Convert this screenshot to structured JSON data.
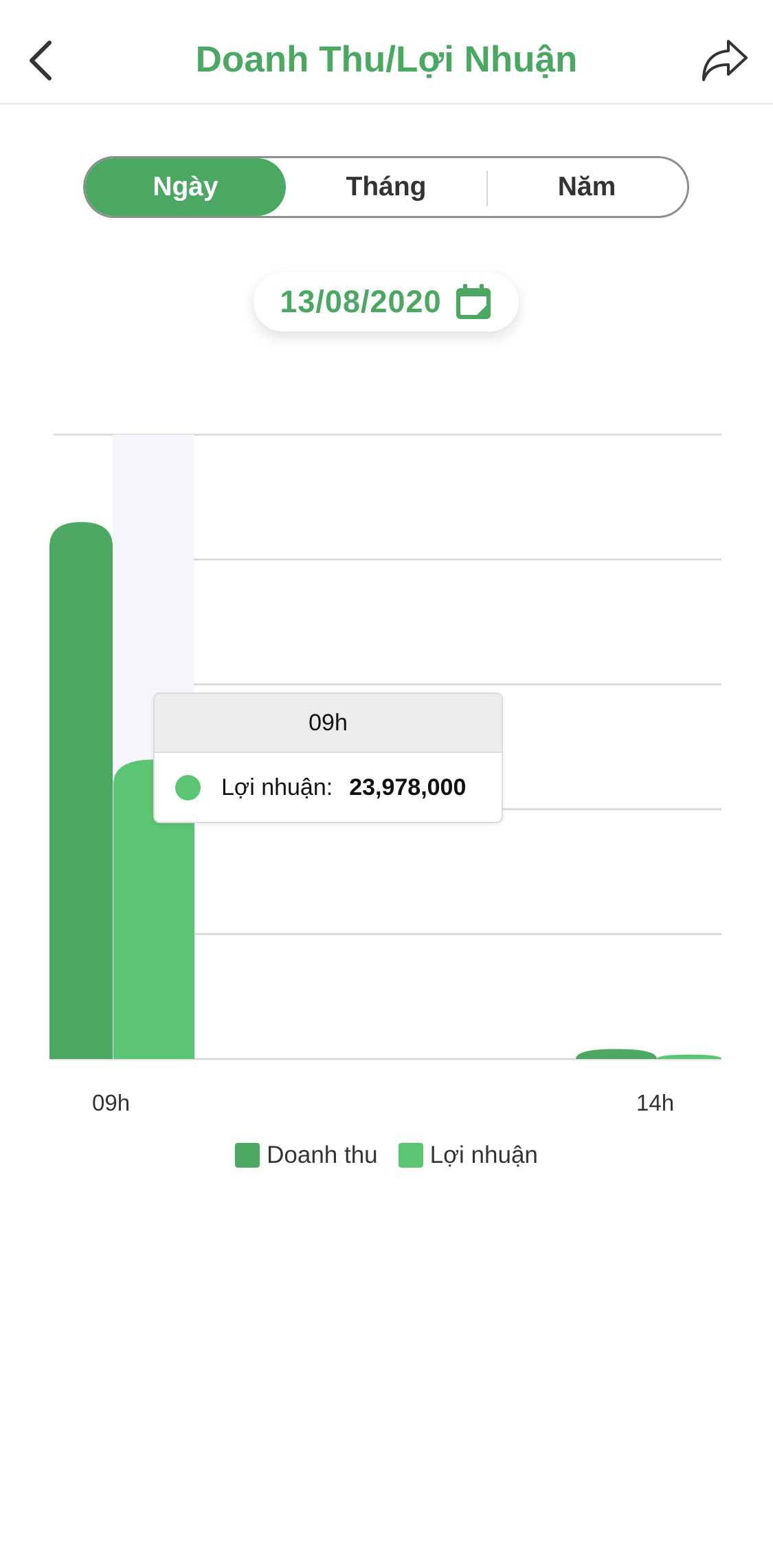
{
  "header": {
    "title": "Doanh Thu/Lợi Nhuận"
  },
  "tabs": [
    {
      "label": "Ngày",
      "active": true
    },
    {
      "label": "Tháng",
      "active": false
    },
    {
      "label": "Năm",
      "active": false
    }
  ],
  "date_picker": {
    "value": "13/08/2020"
  },
  "tooltip": {
    "title": "09h",
    "series_label": "Lợi nhuận:",
    "value": "23,978,000"
  },
  "colors": {
    "accent": "#4aa862",
    "doanh_thu": "#4ea863",
    "loi_nhuan": "#5bc574"
  },
  "chart_data": {
    "type": "bar",
    "categories": [
      "09h",
      "14h"
    ],
    "series": [
      {
        "name": "Doanh thu",
        "values": [
          43000000,
          800000
        ]
      },
      {
        "name": "Lợi nhuận",
        "values": [
          23978000,
          350000
        ]
      }
    ],
    "ylim": [
      0,
      50000000
    ],
    "grid": true,
    "legend": "bottom-center",
    "highlighted_category": "09h"
  }
}
